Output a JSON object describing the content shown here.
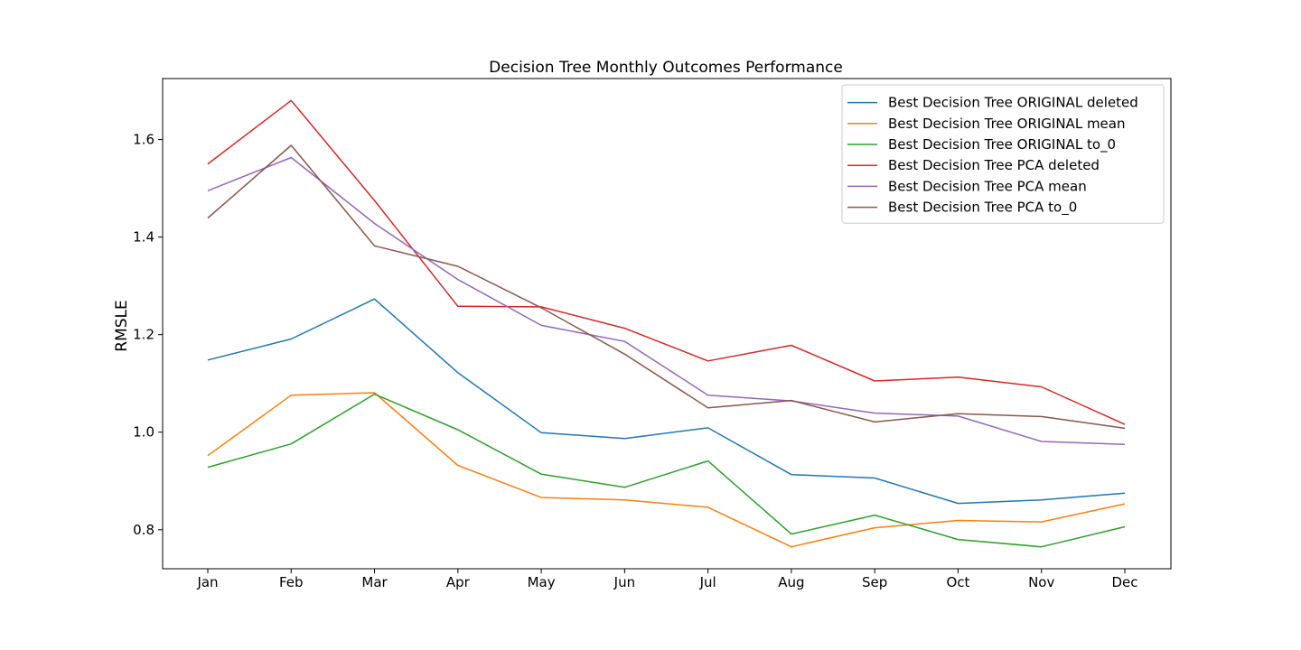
{
  "chart_data": {
    "type": "line",
    "title": "Decision Tree Monthly Outcomes Performance",
    "xlabel": "",
    "ylabel": "RMSLE",
    "categories": [
      "Jan",
      "Feb",
      "Mar",
      "Apr",
      "May",
      "Jun",
      "Jul",
      "Aug",
      "Sep",
      "Oct",
      "Nov",
      "Dec"
    ],
    "ylim": [
      0.72,
      1.725
    ],
    "yticks": [
      0.8,
      1.0,
      1.2,
      1.4,
      1.6
    ],
    "grid": false,
    "legend_position": "top-right",
    "series": [
      {
        "name": "Best Decision Tree ORIGINAL deleted",
        "color": "#1f77b4",
        "values": [
          1.148,
          1.191,
          1.273,
          1.122,
          0.999,
          0.987,
          1.009,
          0.913,
          0.906,
          0.854,
          0.861,
          0.875
        ]
      },
      {
        "name": "Best Decision Tree ORIGINAL mean",
        "color": "#ff7f0e",
        "values": [
          0.952,
          1.076,
          1.081,
          0.932,
          0.866,
          0.861,
          0.846,
          0.765,
          0.804,
          0.819,
          0.816,
          0.853
        ]
      },
      {
        "name": "Best Decision Tree ORIGINAL to_0",
        "color": "#2ca02c",
        "values": [
          0.928,
          0.976,
          1.078,
          1.005,
          0.914,
          0.887,
          0.941,
          0.791,
          0.83,
          0.78,
          0.765,
          0.806
        ]
      },
      {
        "name": "Best Decision Tree PCA deleted",
        "color": "#d62728",
        "values": [
          1.55,
          1.68,
          1.475,
          1.258,
          1.257,
          1.213,
          1.146,
          1.178,
          1.105,
          1.113,
          1.093,
          1.016
        ]
      },
      {
        "name": "Best Decision Tree PCA mean",
        "color": "#9467bd",
        "values": [
          1.495,
          1.563,
          1.428,
          1.313,
          1.219,
          1.186,
          1.076,
          1.064,
          1.039,
          1.033,
          0.981,
          0.975
        ]
      },
      {
        "name": "Best Decision Tree PCA to_0",
        "color": "#8c564b",
        "values": [
          1.439,
          1.588,
          1.382,
          1.34,
          1.255,
          1.16,
          1.05,
          1.065,
          1.021,
          1.038,
          1.032,
          1.008
        ]
      }
    ]
  }
}
